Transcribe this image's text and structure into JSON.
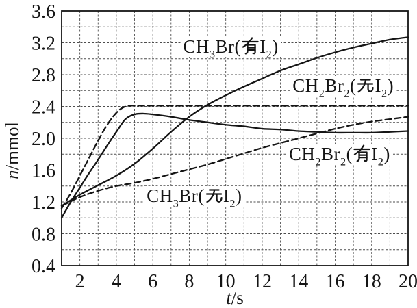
{
  "figure": {
    "background_color": "#ffffff",
    "ink_color": "#151515",
    "grid_color": "#4d4d4d"
  },
  "chart_data": {
    "type": "line",
    "title": "",
    "xlabel": "t/s",
    "ylabel": "n/mmol",
    "xlim": [
      1,
      20
    ],
    "ylim": [
      0.4,
      3.6
    ],
    "x_tick_labels": [
      "2",
      "4",
      "6",
      "8",
      "10",
      "12",
      "14",
      "16",
      "18",
      "20"
    ],
    "x_tick_values": [
      2,
      4,
      6,
      8,
      10,
      12,
      14,
      16,
      18,
      20
    ],
    "y_tick_labels": [
      "0.4",
      "0.8",
      "1.2",
      "1.6",
      "2.0",
      "2.4",
      "2.8",
      "3.2",
      "3.6"
    ],
    "y_tick_values": [
      0.4,
      0.8,
      1.2,
      1.6,
      2.0,
      2.4,
      2.8,
      3.2,
      3.6
    ],
    "grid": {
      "shown": true,
      "x_step": 1,
      "y_step": 0.2,
      "style": "dashed"
    },
    "legend_position": "inline-annotations",
    "series": [
      {
        "id": "ch3br_you_i2",
        "label": "CH₃Br(有I₂)",
        "line_style": "solid",
        "x": [
          1,
          2,
          3,
          4,
          5,
          6,
          7,
          8,
          9,
          10,
          11,
          12,
          13,
          14,
          15,
          16,
          17,
          18,
          19,
          20
        ],
        "y": [
          1.15,
          1.29,
          1.41,
          1.53,
          1.68,
          1.87,
          2.08,
          2.27,
          2.42,
          2.54,
          2.65,
          2.75,
          2.85,
          2.93,
          3.01,
          3.08,
          3.14,
          3.19,
          3.24,
          3.27
        ]
      },
      {
        "id": "ch2br2_wu_i2",
        "label": "CH₂Br₂(无I₂)",
        "line_style": "dashed",
        "x": [
          1,
          1.5,
          2,
          2.5,
          3,
          3.5,
          4,
          4.4,
          4.8,
          5.5,
          7,
          9,
          11,
          13,
          15,
          17,
          19,
          20
        ],
        "y": [
          1.12,
          1.31,
          1.53,
          1.75,
          1.97,
          2.17,
          2.32,
          2.39,
          2.41,
          2.41,
          2.41,
          2.41,
          2.41,
          2.41,
          2.41,
          2.41,
          2.41,
          2.41
        ]
      },
      {
        "id": "ch2br2_you_i2",
        "label": "CH₂Br₂(有I₂)",
        "line_style": "dashed",
        "x": [
          1,
          2,
          3,
          4,
          5,
          6,
          7,
          8,
          9,
          10,
          11,
          12,
          13,
          14,
          15,
          16,
          17,
          18,
          19,
          20
        ],
        "y": [
          1.15,
          1.26,
          1.34,
          1.4,
          1.44,
          1.49,
          1.55,
          1.61,
          1.67,
          1.74,
          1.81,
          1.88,
          1.94,
          2.0,
          2.06,
          2.12,
          2.17,
          2.21,
          2.24,
          2.27
        ]
      },
      {
        "id": "ch3br_wu_i2",
        "label": "CH₃Br(无I₂)",
        "line_style": "solid",
        "x": [
          1,
          1.5,
          2,
          2.5,
          3,
          3.5,
          4,
          4.5,
          5,
          5.5,
          6,
          7,
          8,
          9,
          10,
          11,
          12,
          13,
          14,
          15,
          16,
          17,
          18,
          19,
          20
        ],
        "y": [
          1.0,
          1.2,
          1.38,
          1.56,
          1.73,
          1.91,
          2.08,
          2.24,
          2.3,
          2.31,
          2.3,
          2.27,
          2.23,
          2.2,
          2.17,
          2.15,
          2.12,
          2.11,
          2.09,
          2.08,
          2.07,
          2.07,
          2.07,
          2.08,
          2.09
        ]
      }
    ],
    "annotations": [
      {
        "series": "ch3br_you_i2",
        "text": "CH₃Br(有I₂)",
        "anchor_t": 7.55,
        "anchor_n": 3.27
      },
      {
        "series": "ch2br2_wu_i2",
        "text": "CH₂Br₂(无I₂)",
        "anchor_t": 13.55,
        "anchor_n": 2.78
      },
      {
        "series": "ch2br2_you_i2",
        "text": "CH₂Br₂(有I₂)",
        "anchor_t": 13.35,
        "anchor_n": 1.92
      },
      {
        "series": "ch3br_wu_i2",
        "text": "CH₃Br(无I₂)",
        "anchor_t": 5.55,
        "anchor_n": 1.4
      }
    ]
  }
}
